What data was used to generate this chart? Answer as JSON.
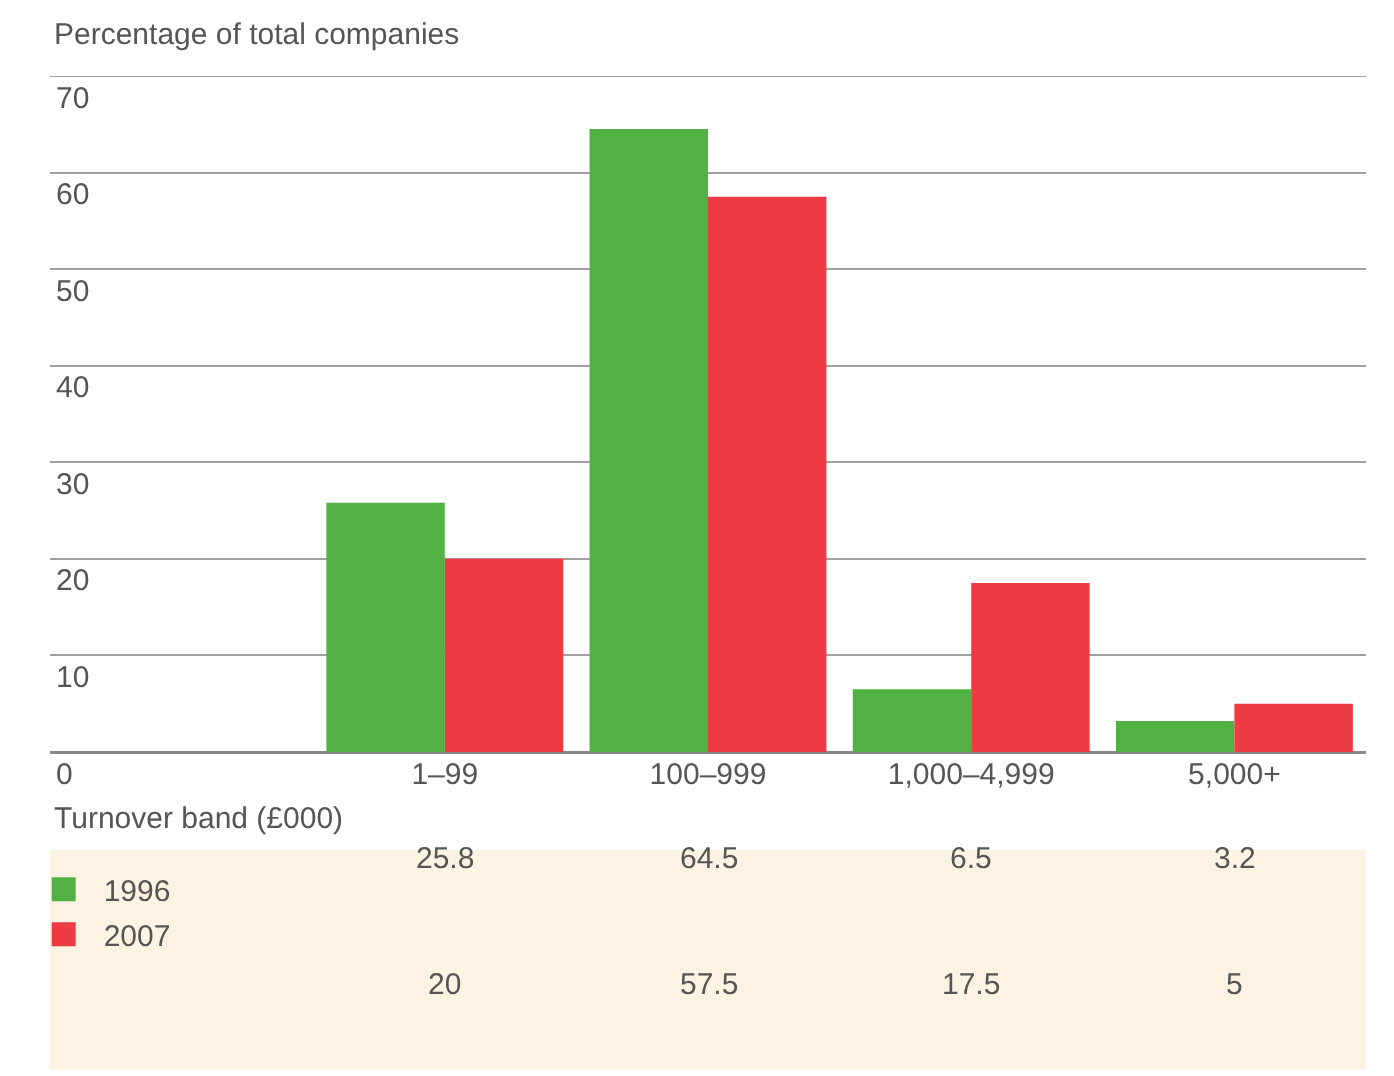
{
  "chart_data": {
    "type": "bar",
    "ylabel": "Percentage of total companies",
    "xlabel": "Turnover band (£000)",
    "categories": [
      "1–99",
      "100–999",
      "1,000–4,999",
      "5,000+"
    ],
    "series": [
      {
        "name": "1996",
        "color": "#52b044",
        "values": [
          25.8,
          64.5,
          6.5,
          3.2
        ]
      },
      {
        "name": "2007",
        "color": "#ee3a43",
        "values": [
          20,
          57.5,
          17.5,
          5
        ]
      }
    ],
    "ylim": [
      0,
      70
    ],
    "yticks": [
      0,
      10,
      20,
      30,
      40,
      50,
      60,
      70
    ],
    "grid": "y",
    "data_labels": true,
    "legend": "bottom left"
  }
}
